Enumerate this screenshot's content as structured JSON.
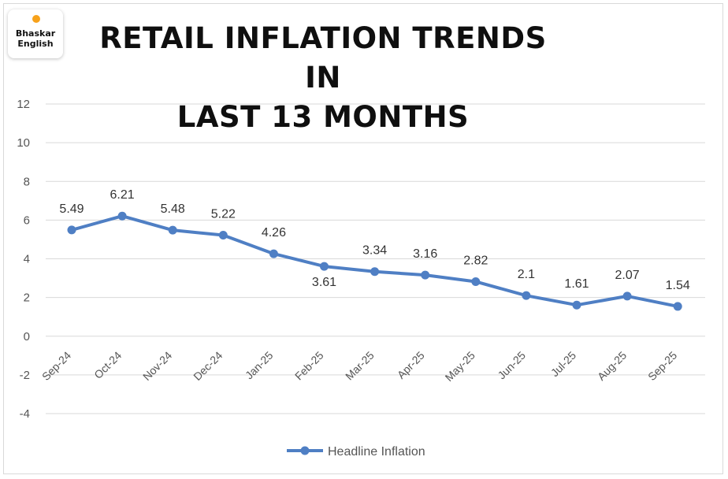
{
  "logo": {
    "line1": "Bhaskar",
    "line2": "English",
    "dot_color": "#f7a21b"
  },
  "chart_data": {
    "type": "line",
    "title": "RETAIL INFLATION TRENDS IN LAST 13 MONTHS",
    "title_lines": [
      "RETAIL INFLATION TRENDS IN",
      "LAST 13 MONTHS"
    ],
    "categories": [
      "Sep-24",
      "Oct-24",
      "Nov-24",
      "Dec-24",
      "Jan-25",
      "Feb-25",
      "Mar-25",
      "Apr-25",
      "May-25",
      "Jun-25",
      "Jul-25",
      "Aug-25",
      "Sep-25"
    ],
    "series": [
      {
        "name": "Headline Inflation",
        "values": [
          5.49,
          6.21,
          5.48,
          5.22,
          4.26,
          3.61,
          3.34,
          3.16,
          2.82,
          2.1,
          1.61,
          2.07,
          1.54
        ],
        "labels": [
          "5.49",
          "6.21",
          "5.48",
          "5.22",
          "4.26",
          "3.61",
          "3.34",
          "3.16",
          "2.82",
          "2.1",
          "1.61",
          "2.07",
          "1.54"
        ],
        "color": "#4f7fc4"
      }
    ],
    "ylim": [
      -4,
      12
    ],
    "yticks": [
      "12",
      "10",
      "8",
      "6",
      "4",
      "2",
      "0",
      "-2",
      "-4"
    ],
    "grid": true,
    "legend": "bottom",
    "xlabel": "",
    "ylabel": ""
  }
}
